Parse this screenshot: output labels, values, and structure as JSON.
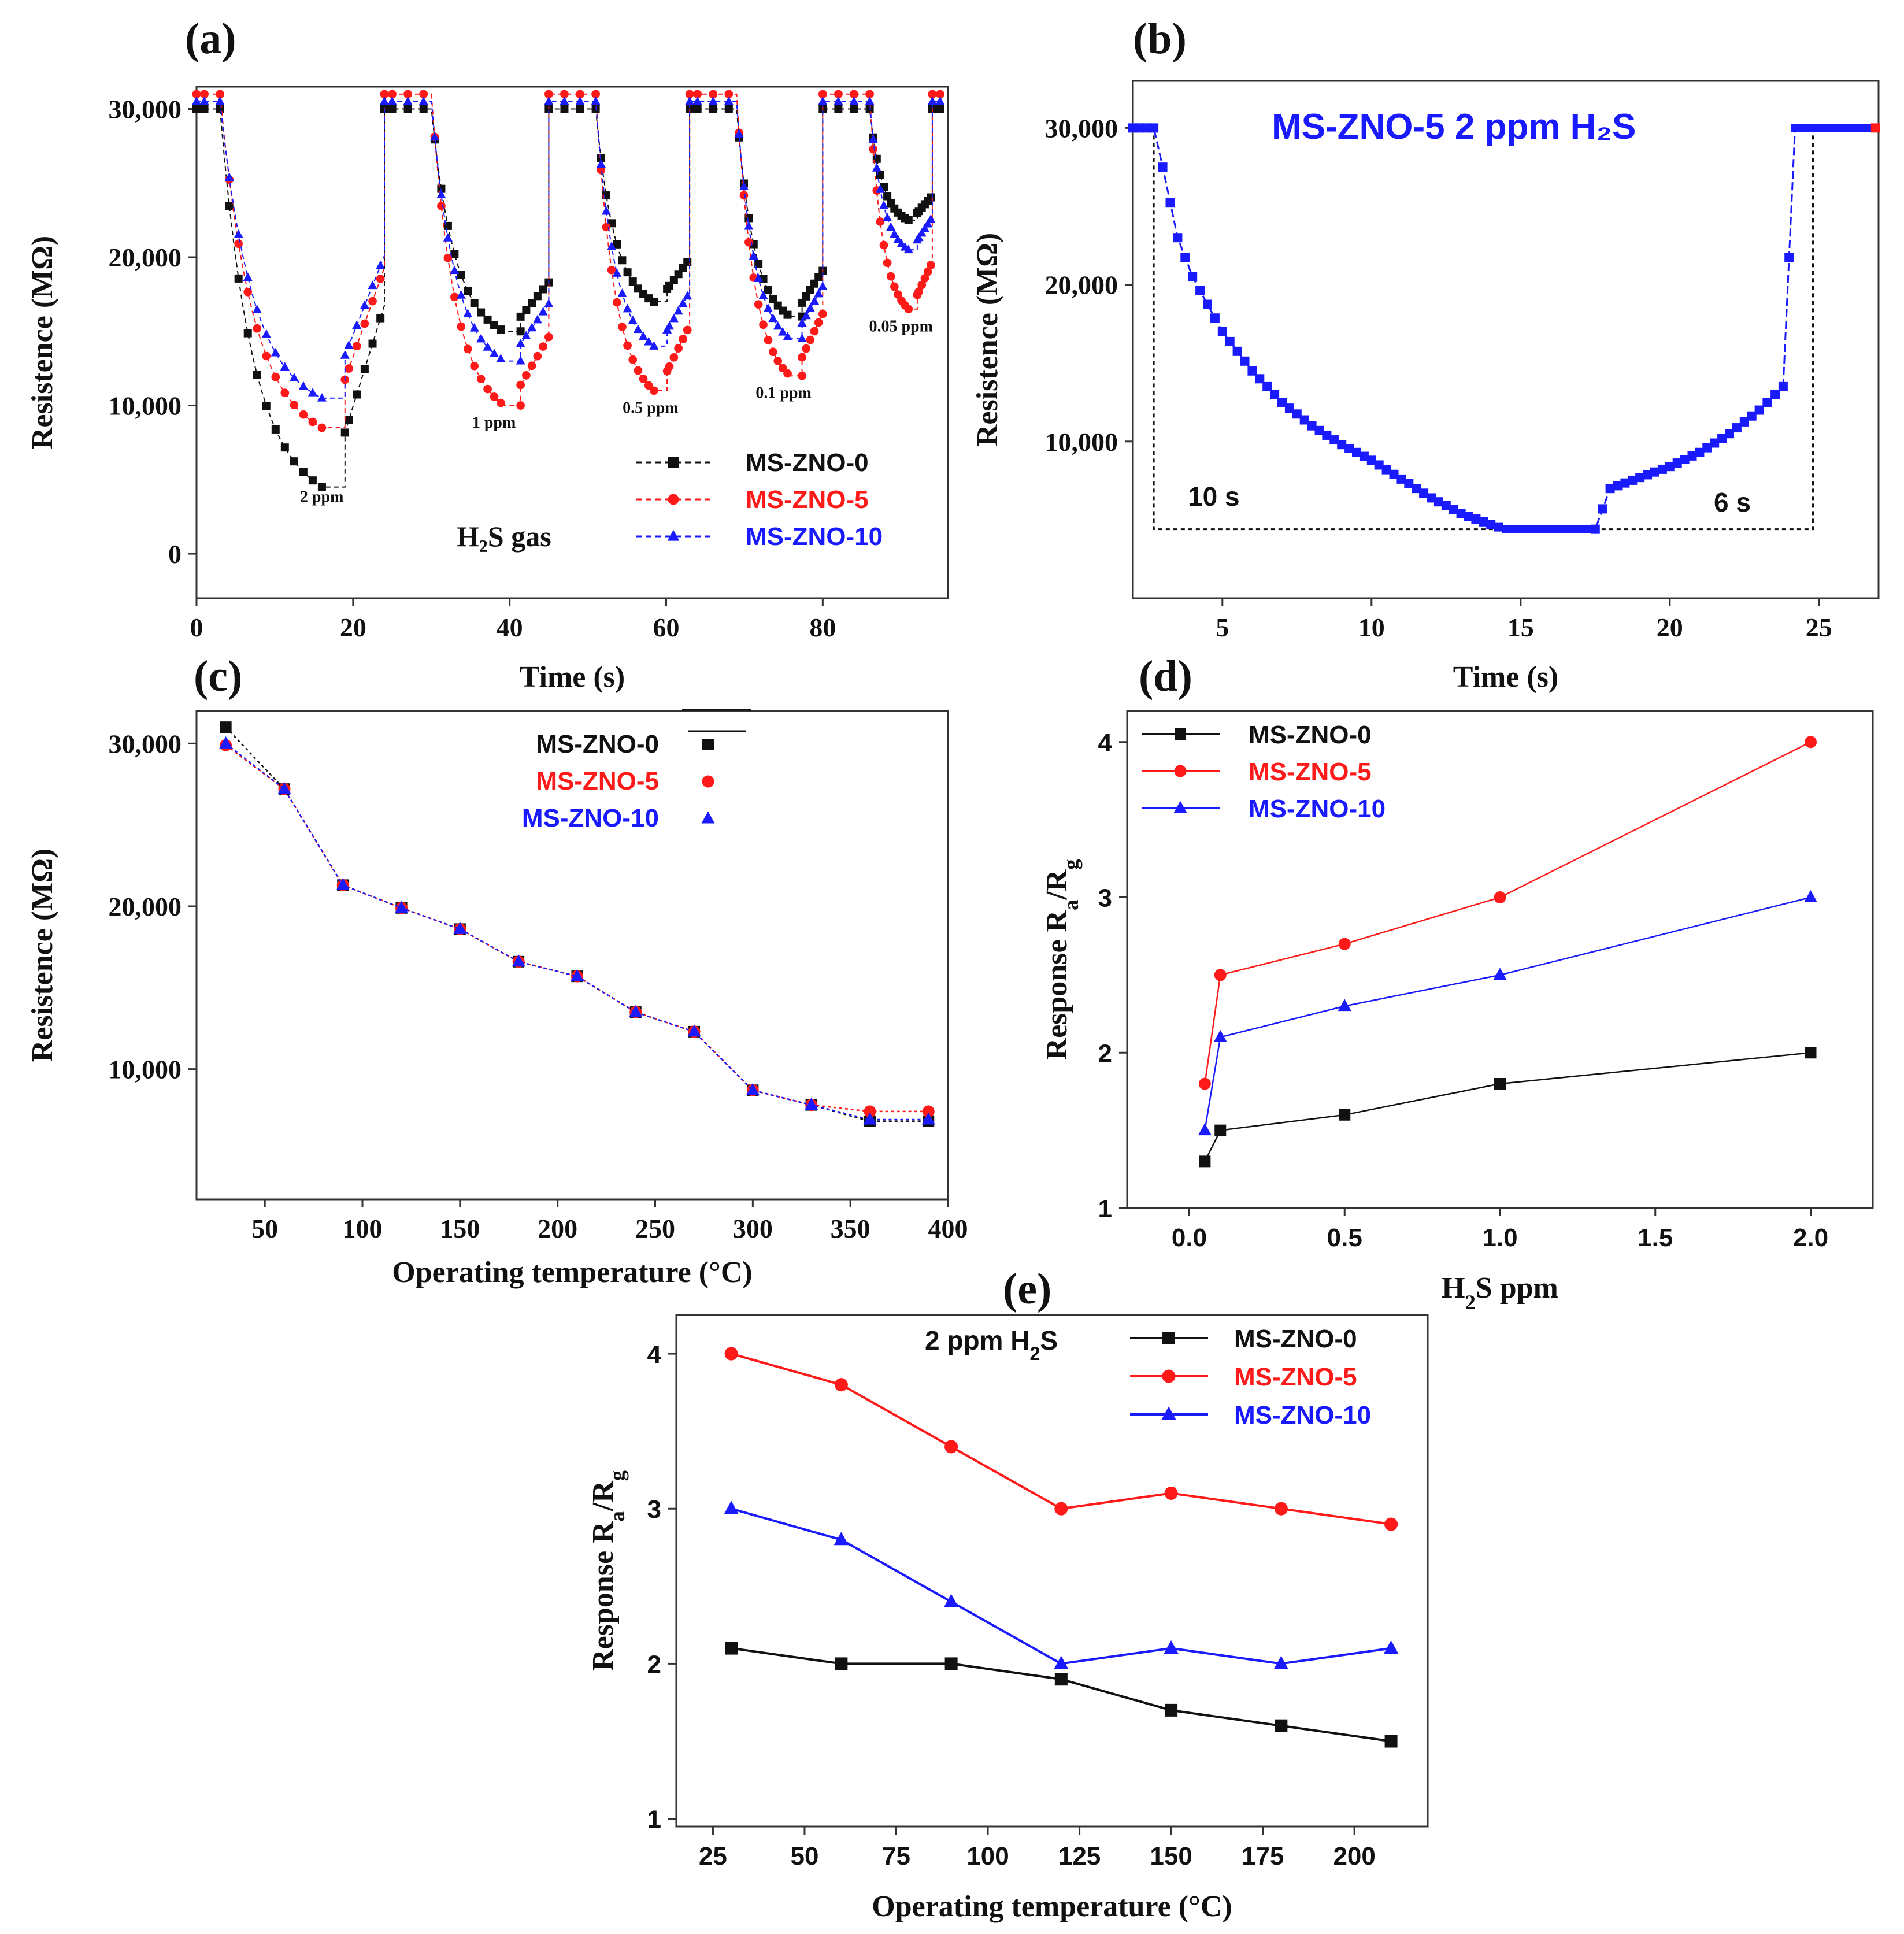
{
  "colors": {
    "s0": "#111111",
    "s5": "#ff1a1a",
    "s10": "#1a1aff"
  },
  "series_names": [
    "MS-ZNO-0",
    "MS-ZNO-5",
    "MS-ZNO-10"
  ],
  "chart_data": [
    {
      "panel": "(a)",
      "type": "line",
      "xlabel": "Time (s)",
      "ylabel": "Resistence (MΩ)",
      "xlim": [
        0,
        96
      ],
      "ylim": [
        -3000,
        31500
      ],
      "xticks": [
        0,
        20,
        40,
        60,
        80
      ],
      "xtick_labels": [
        "0",
        "20",
        "40",
        "60",
        "80"
      ],
      "yticks": [
        0,
        10000,
        20000,
        30000
      ],
      "ytick_labels": [
        "0",
        "10,000",
        "20,000",
        "30,000"
      ],
      "annotation": "H₂S gas",
      "pulses": [
        {
          "label": "2 ppm",
          "start": 3,
          "end": 24,
          "minima": [
            4500,
            8500,
            10500
          ]
        },
        {
          "label": "1 ppm",
          "start": 30,
          "end": 45,
          "minima": [
            15000,
            10000,
            13000
          ]
        },
        {
          "label": "0.5 ppm",
          "start": 51,
          "end": 63,
          "minima": [
            17000,
            11000,
            14000
          ]
        },
        {
          "label": "0.1 ppm",
          "start": 69,
          "end": 80,
          "minima": [
            16000,
            12000,
            14500
          ]
        },
        {
          "label": "0.05 ppm",
          "start": 86,
          "end": 94,
          "minima": [
            22500,
            16500,
            20500
          ]
        }
      ],
      "baselines": [
        30000,
        31000,
        30500
      ],
      "legend": [
        "MS-ZNO-0",
        "MS-ZNO-5",
        "MS-ZNO-10"
      ]
    },
    {
      "panel": "(b)",
      "type": "line",
      "title": "MS-ZNO-5    2 ppm H₂S",
      "xlabel": "Time (s)",
      "ylabel": "Resistence (MΩ)",
      "xlim": [
        2,
        27
      ],
      "ylim": [
        0,
        33000
      ],
      "xticks": [
        5,
        10,
        15,
        20,
        25
      ],
      "xtick_labels": [
        "5",
        "10",
        "15",
        "20",
        "25"
      ],
      "yticks": [
        10000,
        20000,
        30000
      ],
      "ytick_labels": [
        "10,000",
        "20,000",
        "30,000"
      ],
      "series": [
        {
          "name": "MS-ZNO-5",
          "x": [
            2,
            2.7,
            3,
            3.5,
            4,
            5,
            6,
            7,
            8,
            9,
            10,
            11,
            12,
            13,
            14,
            14.5,
            17.5,
            18,
            19,
            20,
            21,
            22,
            23,
            23.8,
            24.2,
            27
          ],
          "y": [
            30000,
            30000,
            27500,
            23000,
            20500,
            17000,
            14500,
            12500,
            11000,
            9800,
            8800,
            7600,
            6400,
            5400,
            4700,
            4400,
            4400,
            7000,
            7700,
            8400,
            9300,
            10500,
            12000,
            13500,
            30000,
            30000
          ]
        }
      ],
      "response_label": "10 s",
      "recovery_label": "6 s",
      "dotted_box": {
        "x_start": 2.7,
        "x_end": 24.8,
        "y_low": 4400,
        "y_high": 30000
      }
    },
    {
      "panel": "(c)",
      "type": "line",
      "xlabel": "Operating temperature (°C)",
      "ylabel": "Resistence (MΩ)",
      "xlim": [
        15,
        400
      ],
      "ylim": [
        2000,
        32000
      ],
      "xticks": [
        50,
        100,
        150,
        200,
        250,
        300,
        350,
        400
      ],
      "xtick_labels": [
        "50",
        "100",
        "150",
        "200",
        "250",
        "300",
        "350",
        "400"
      ],
      "yticks": [
        10000,
        20000,
        30000
      ],
      "ytick_labels": [
        "10,000",
        "20,000",
        "30,000"
      ],
      "x": [
        30,
        60,
        90,
        120,
        150,
        180,
        210,
        240,
        270,
        300,
        330,
        360,
        390
      ],
      "series": [
        {
          "name": "MS-ZNO-0",
          "values": [
            31000,
            27200,
            21300,
            19900,
            18600,
            16600,
            15700,
            13500,
            12300,
            8700,
            7800,
            6800,
            6800
          ]
        },
        {
          "name": "MS-ZNO-5",
          "values": [
            29900,
            27200,
            21300,
            19900,
            18600,
            16600,
            15700,
            13500,
            12300,
            8700,
            7800,
            7400,
            7400
          ]
        },
        {
          "name": "MS-ZNO-10",
          "values": [
            30000,
            27200,
            21300,
            19900,
            18600,
            16600,
            15700,
            13500,
            12300,
            8700,
            7800,
            6900,
            6900
          ]
        }
      ]
    },
    {
      "panel": "(d)",
      "type": "line",
      "xlabel": "H₂S ppm",
      "ylabel": "Response Ra/Rg",
      "xlim": [
        -0.2,
        2.2
      ],
      "ylim": [
        1,
        4.2
      ],
      "xticks": [
        0.0,
        0.5,
        1.0,
        1.5,
        2.0
      ],
      "xtick_labels": [
        "0.0",
        "0.5",
        "1.0",
        "1.5",
        "2.0"
      ],
      "yticks": [
        1,
        2,
        3,
        4
      ],
      "ytick_labels": [
        "1",
        "2",
        "3",
        "4"
      ],
      "x": [
        0.05,
        0.1,
        0.5,
        1.0,
        2.0
      ],
      "series": [
        {
          "name": "MS-ZNO-0",
          "values": [
            1.3,
            1.5,
            1.6,
            1.8,
            2.0
          ]
        },
        {
          "name": "MS-ZNO-5",
          "values": [
            1.8,
            2.5,
            2.7,
            3.0,
            4.0
          ]
        },
        {
          "name": "MS-ZNO-10",
          "values": [
            1.5,
            2.1,
            2.3,
            2.5,
            3.0
          ]
        }
      ]
    },
    {
      "panel": "(e)",
      "type": "line",
      "title": "2 ppm H₂S",
      "xlabel": "Operating temperature (°C)",
      "ylabel": "Response Ra/Rg",
      "xlim": [
        15,
        220
      ],
      "ylim": [
        0.95,
        4.25
      ],
      "xticks": [
        25,
        50,
        75,
        100,
        125,
        150,
        175,
        200
      ],
      "xtick_labels": [
        "25",
        "50",
        "75",
        "100",
        "125",
        "150",
        "175",
        "200"
      ],
      "yticks": [
        1,
        2,
        3,
        4
      ],
      "ytick_labels": [
        "1",
        "2",
        "3",
        "4"
      ],
      "x": [
        30,
        60,
        90,
        120,
        150,
        180,
        210
      ],
      "series": [
        {
          "name": "MS-ZNO-0",
          "values": [
            2.1,
            2.0,
            2.0,
            1.9,
            1.7,
            1.6,
            1.5
          ]
        },
        {
          "name": "MS-ZNO-5",
          "values": [
            4.0,
            3.8,
            3.4,
            3.0,
            3.1,
            3.0,
            2.9
          ]
        },
        {
          "name": "MS-ZNO-10",
          "values": [
            3.0,
            2.8,
            2.4,
            2.0,
            2.1,
            2.0,
            2.1
          ]
        }
      ]
    }
  ]
}
